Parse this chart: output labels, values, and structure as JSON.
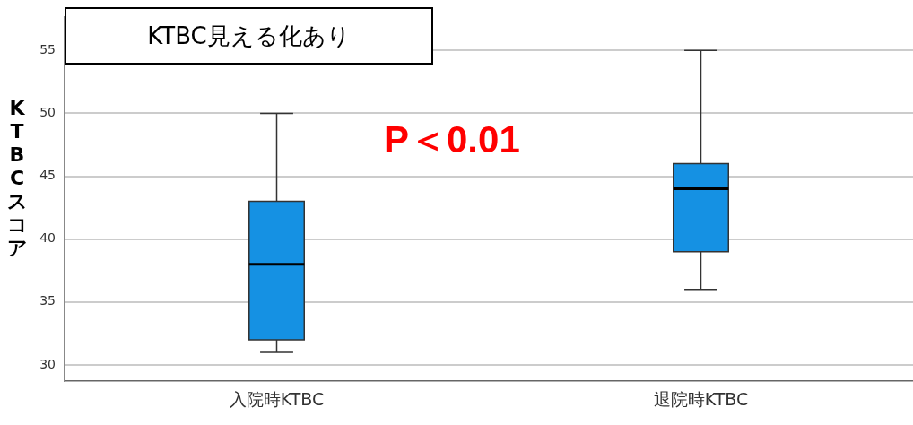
{
  "chart_data": {
    "type": "box",
    "title": "KTBC見える化あり",
    "ylabel": "KTBCスコア",
    "annotations": [
      "P＜0.01"
    ],
    "categories": [
      "入院時KTBC",
      "退院時KTBC"
    ],
    "boxes": [
      {
        "low": 31,
        "q1": 32,
        "median": 38,
        "q3": 43,
        "high": 50
      },
      {
        "low": 36,
        "q1": 39,
        "median": 44,
        "q3": 46,
        "high": 55
      }
    ],
    "color": "#1591e3",
    "ylim": [
      28.7,
      57.7
    ],
    "yticks": [
      30,
      35,
      40,
      45,
      50,
      55
    ],
    "grid": "y"
  }
}
